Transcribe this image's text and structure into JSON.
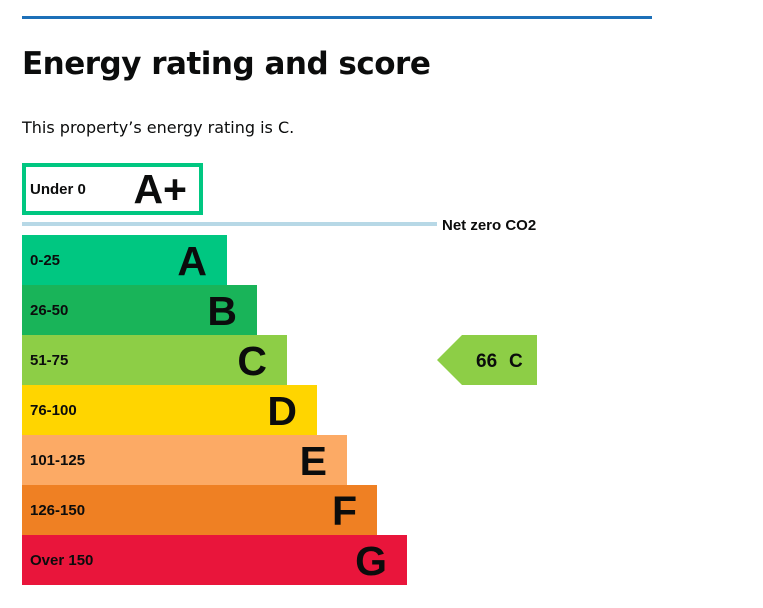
{
  "page": {
    "title": "Energy rating and score",
    "summary": "This property’s energy rating is C."
  },
  "colors": {
    "rule": "#1d70b8",
    "text": "#0b0c0c",
    "netzero_line": "#b7d8e6",
    "aplus_border": "#00c781"
  },
  "chart_data": {
    "type": "bar",
    "categories": [
      "A+",
      "A",
      "B",
      "C",
      "D",
      "E",
      "F",
      "G"
    ],
    "bands": [
      {
        "letter": "A+",
        "range": "Under 0",
        "level": 1,
        "color": "#00c781",
        "outlined": true
      },
      {
        "letter": "A",
        "range": "0-25",
        "level": 2,
        "color": "#00c781",
        "outlined": false
      },
      {
        "letter": "B",
        "range": "26-50",
        "level": 3,
        "color": "#19b459",
        "outlined": false
      },
      {
        "letter": "C",
        "range": "51-75",
        "level": 4,
        "color": "#8dce46",
        "outlined": false
      },
      {
        "letter": "D",
        "range": "76-100",
        "level": 5,
        "color": "#ffd500",
        "outlined": false
      },
      {
        "letter": "E",
        "range": "101-125",
        "level": 6,
        "color": "#fcaa65",
        "outlined": false
      },
      {
        "letter": "F",
        "range": "126-150",
        "level": 7,
        "color": "#ef8023",
        "outlined": false
      },
      {
        "letter": "G",
        "range": "Over 150",
        "level": 8,
        "color": "#e9153b",
        "outlined": false
      }
    ],
    "net_zero_label": "Net zero CO2",
    "current": {
      "score": "66",
      "band": "C",
      "color": "#8dce46"
    }
  }
}
